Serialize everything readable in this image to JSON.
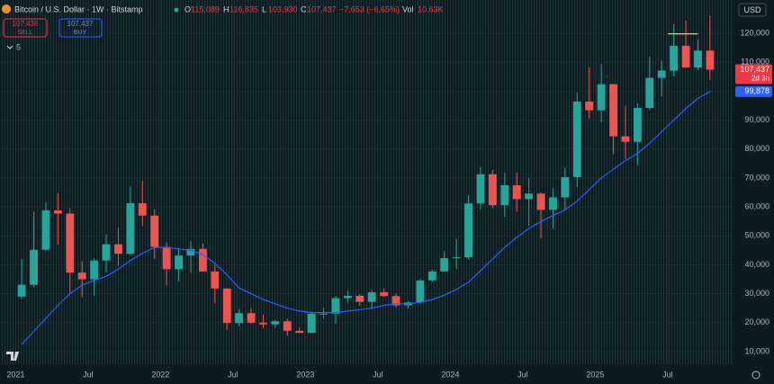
{
  "header": {
    "symbol": "Bitcoin / U.S. Dollar · 1W · Bitstamp",
    "ohlc": [
      {
        "key": "O",
        "value": "115,089"
      },
      {
        "key": "H",
        "value": "116,835"
      },
      {
        "key": "L",
        "value": "103,930"
      },
      {
        "key": "C",
        "value": "107,437"
      }
    ],
    "change": "−7,653 (−6.65%)",
    "volume_key": "Vol",
    "volume": "10.63K"
  },
  "trade": {
    "sell_price": "107,436",
    "sell": "SELL",
    "buy_price": "107,437",
    "buy": "BUY"
  },
  "indicators_count": "5",
  "currency": "USD",
  "chart_data": {
    "type": "candlestick",
    "x": [
      "2021-01",
      "2021-02",
      "2021-03",
      "2021-04",
      "2021-05",
      "2021-06",
      "2021-07",
      "2021-08",
      "2021-09",
      "2021-10",
      "2021-11",
      "2021-12",
      "2022-01",
      "2022-02",
      "2022-03",
      "2022-04",
      "2022-05",
      "2022-06",
      "2022-07",
      "2022-08",
      "2022-09",
      "2022-10",
      "2022-11",
      "2022-12",
      "2023-01",
      "2023-02",
      "2023-03",
      "2023-04",
      "2023-05",
      "2023-06",
      "2023-07",
      "2023-08",
      "2023-09",
      "2023-10",
      "2023-11",
      "2023-12",
      "2024-01",
      "2024-02",
      "2024-03",
      "2024-04",
      "2024-05",
      "2024-06",
      "2024-07",
      "2024-08",
      "2024-09",
      "2024-10",
      "2024-11",
      "2024-12",
      "2025-01",
      "2025-02",
      "2025-03",
      "2025-04",
      "2025-05",
      "2025-06",
      "2025-07",
      "2025-08",
      "2025-09",
      "2025-10"
    ],
    "open": [
      29000,
      33100,
      45200,
      58800,
      57700,
      37300,
      35000,
      41500,
      47100,
      43800,
      61300,
      57000,
      46200,
      38500,
      43200,
      45500,
      37700,
      31800,
      19900,
      23300,
      20000,
      19400,
      20500,
      17200,
      16500,
      23100,
      23100,
      28500,
      29300,
      27200,
      30500,
      29200,
      26000,
      27000,
      34600,
      37700,
      42300,
      42600,
      61200,
      71300,
      60600,
      67500,
      62700,
      64600,
      59000,
      63300,
      70300,
      96400,
      93400,
      102400,
      84400,
      82500,
      94200,
      104600,
      107100,
      115700,
      108200,
      114000
    ],
    "high": [
      41900,
      58300,
      61700,
      64800,
      59500,
      41300,
      42300,
      50500,
      52900,
      67000,
      69000,
      59100,
      47900,
      45800,
      48200,
      47400,
      40000,
      31900,
      24700,
      25200,
      22800,
      21000,
      21400,
      18400,
      23900,
      25300,
      29200,
      31000,
      29800,
      31400,
      31800,
      30200,
      27500,
      35200,
      38400,
      44700,
      48900,
      64000,
      73800,
      72800,
      71900,
      71900,
      70000,
      65000,
      66500,
      73600,
      99600,
      108300,
      109400,
      102500,
      95000,
      95800,
      112000,
      110500,
      123200,
      124400,
      117900,
      126200
    ],
    "low": [
      28100,
      32300,
      44900,
      47000,
      30000,
      28800,
      29300,
      37300,
      39600,
      43300,
      53300,
      42000,
      32900,
      34300,
      37200,
      37700,
      26700,
      17600,
      18800,
      19600,
      18200,
      18200,
      15500,
      16300,
      16500,
      21400,
      19600,
      26900,
      25800,
      24800,
      28900,
      25300,
      24900,
      26600,
      34100,
      37600,
      38500,
      41900,
      59100,
      59600,
      56500,
      58400,
      53500,
      49000,
      52500,
      58900,
      66800,
      90500,
      89200,
      78200,
      76600,
      74400,
      93400,
      98200,
      105100,
      108100,
      107300,
      103930
    ],
    "close": [
      33100,
      45200,
      58800,
      57700,
      37300,
      35000,
      41500,
      47100,
      43800,
      61300,
      57000,
      46200,
      38500,
      43200,
      45500,
      37700,
      31800,
      19900,
      23300,
      20000,
      19400,
      20500,
      17200,
      16500,
      23100,
      23100,
      28500,
      29300,
      27200,
      30500,
      29200,
      26000,
      27000,
      34600,
      37700,
      42300,
      42600,
      61200,
      71300,
      60600,
      67500,
      62700,
      64600,
      59000,
      63300,
      70300,
      96400,
      93400,
      102400,
      84400,
      82500,
      94200,
      104600,
      107100,
      115700,
      108200,
      114000,
      107437
    ],
    "up_color": "#26a69a",
    "down_color": "#ef5350",
    "moving_average": {
      "color": "#2962ff",
      "values": [
        12500,
        17000,
        21500,
        26000,
        30000,
        33000,
        34600,
        36000,
        38500,
        41500,
        44000,
        46000,
        46000,
        45500,
        45000,
        43500,
        40500,
        36500,
        32000,
        30000,
        28000,
        26500,
        25000,
        24000,
        23500,
        23500,
        23500,
        24000,
        24500,
        25000,
        26000,
        26500,
        26500,
        27000,
        28000,
        29500,
        31500,
        34000,
        38000,
        42000,
        46000,
        49500,
        52500,
        55000,
        57000,
        59000,
        62000,
        66000,
        70000,
        73000,
        76000,
        78500,
        82000,
        86000,
        90000,
        94000,
        97500,
        99878
      ]
    },
    "price_tags": [
      {
        "value": 107437,
        "label": "107,437",
        "sublabel": "2d 3h",
        "color": "#f23645"
      },
      {
        "value": 99878,
        "label": "99,878",
        "color": "#2962ff"
      }
    ],
    "annotation_line": {
      "value": 119800,
      "from": "2025-07",
      "to": "2025-09",
      "color": "#f5d142"
    },
    "xlim": [
      "2020-12",
      "2025-12"
    ],
    "xticks": [
      {
        "value": "2021-01",
        "label": "2021"
      },
      {
        "value": "2021-07",
        "label": "Jul"
      },
      {
        "value": "2022-01",
        "label": "2022"
      },
      {
        "value": "2022-07",
        "label": "Jul"
      },
      {
        "value": "2023-01",
        "label": "2023"
      },
      {
        "value": "2023-07",
        "label": "Jul"
      },
      {
        "value": "2024-01",
        "label": "2024"
      },
      {
        "value": "2024-07",
        "label": "Jul"
      },
      {
        "value": "2025-01",
        "label": "2025"
      },
      {
        "value": "2025-07",
        "label": "Jul"
      }
    ],
    "ylim": [
      5650,
      131500
    ],
    "yticks": [
      {
        "value": 10000,
        "label": "10,000"
      },
      {
        "value": 20000,
        "label": "20,000"
      },
      {
        "value": 30000,
        "label": "30,000"
      },
      {
        "value": 40000,
        "label": "40,000"
      },
      {
        "value": 50000,
        "label": "50,000"
      },
      {
        "value": 60000,
        "label": "60,000"
      },
      {
        "value": 70000,
        "label": "70,000"
      },
      {
        "value": 80000,
        "label": "80,000"
      },
      {
        "value": 90000,
        "label": "90,000"
      },
      {
        "value": 100000,
        "label": "100,000"
      },
      {
        "value": 110000,
        "label": "110,000"
      },
      {
        "value": 120000,
        "label": "120,000"
      }
    ],
    "grid": true
  }
}
